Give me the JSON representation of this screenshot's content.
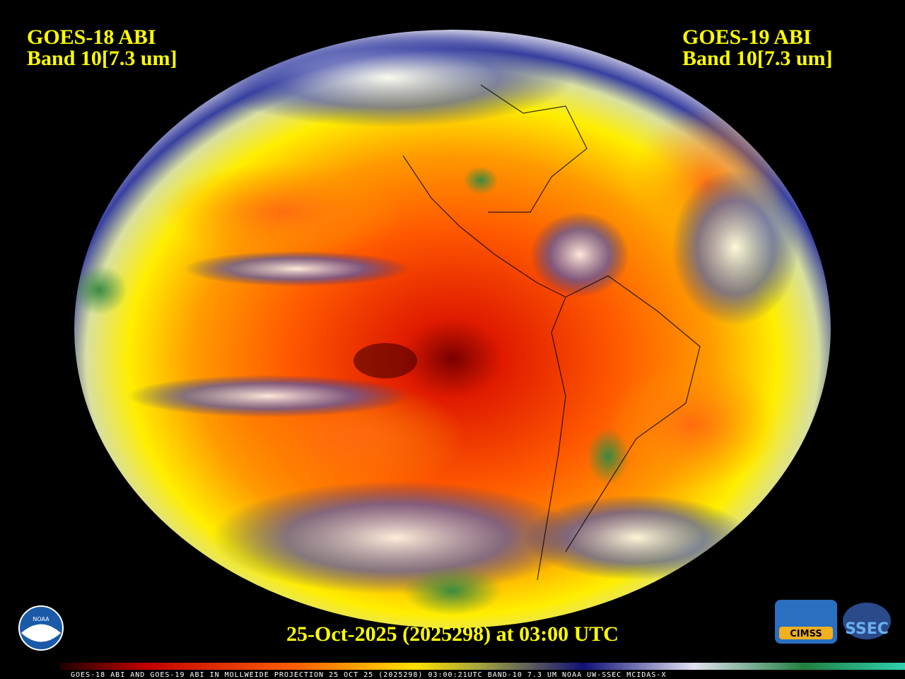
{
  "header": {
    "left": {
      "satellite": "GOES-18 ABI",
      "band": "Band 10[7.3 um]"
    },
    "right": {
      "satellite": "GOES-19 ABI",
      "band": "Band 10[7.3 um]"
    }
  },
  "timestamp": "25-Oct-2025 (2025298) at 03:00 UTC",
  "footer": "GOES-18 ABI AND GOES-19 ABI IN MOLLWEIDE PROJECTION 25 OCT 25 (2025298) 03:00:21UTC BAND-10 7.3 UM NOAA UW-SSEC MCIDAS-X",
  "logos": {
    "noaa": "NOAA",
    "cimss": "CIMSS",
    "ssec": "SSEC"
  }
}
